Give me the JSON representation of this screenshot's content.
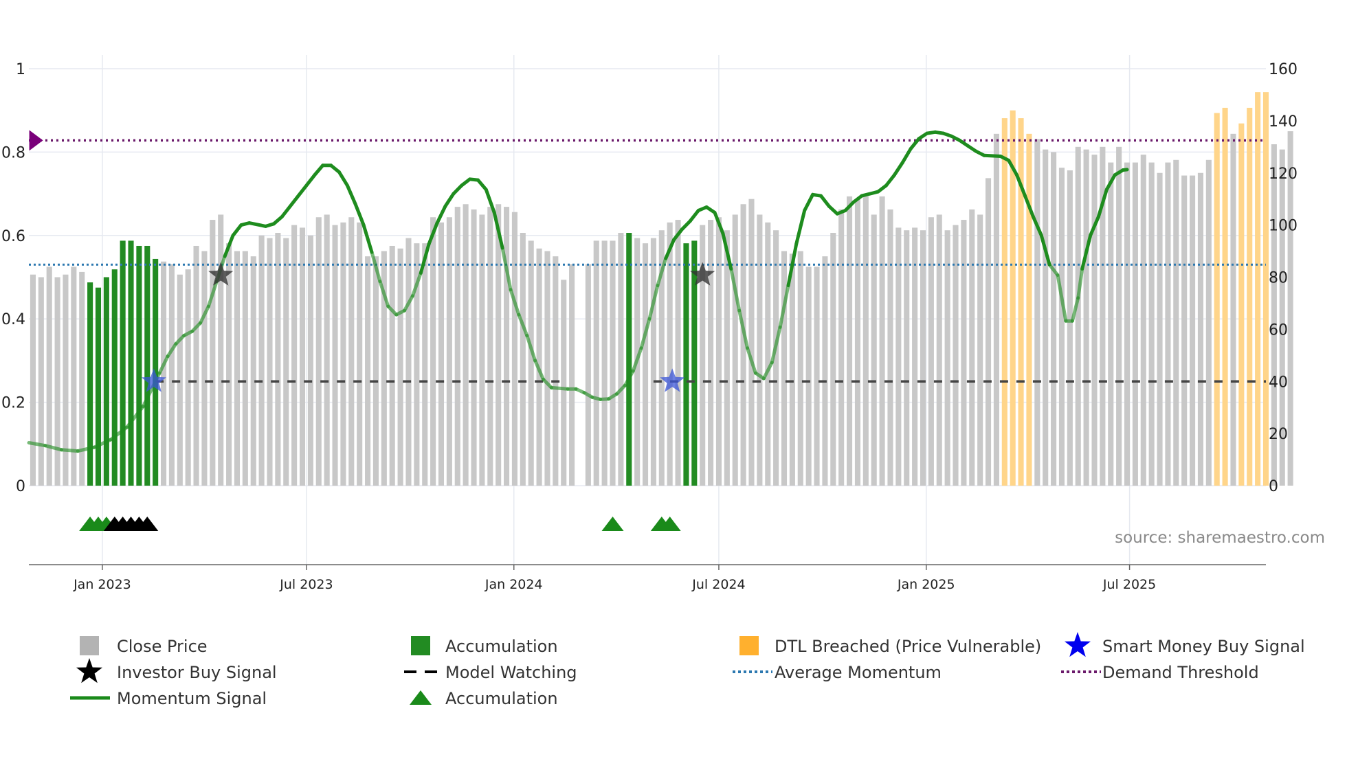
{
  "chart_data": {
    "type": "bar+line",
    "source": "source: sharemaestro.com",
    "left_axis": {
      "min": 0,
      "max": 1,
      "ticks": [
        0,
        0.2,
        0.4,
        0.6,
        0.8,
        1
      ],
      "tick_labels": [
        "0",
        "0.2",
        "0.4",
        "0.6",
        "0.8",
        "1"
      ]
    },
    "right_axis": {
      "min": 0,
      "max": 160,
      "ticks": [
        0,
        20,
        40,
        60,
        80,
        100,
        120,
        140,
        160
      ],
      "tick_labels": [
        "0",
        "20",
        "40",
        "60",
        "80",
        "100",
        "120",
        "140",
        "160"
      ]
    },
    "x_axis": {
      "start_week": 0,
      "end_week": 151.5,
      "ticks": [
        {
          "week": 9,
          "label": "Jan 2023"
        },
        {
          "week": 34,
          "label": "Jul 2023"
        },
        {
          "week": 59.4,
          "label": "Jan 2024"
        },
        {
          "week": 84.5,
          "label": "Jul 2024"
        },
        {
          "week": 109.9,
          "label": "Jan 2025"
        },
        {
          "week": 134.8,
          "label": "Jul 2025"
        }
      ]
    },
    "close_price": [
      81,
      80,
      84,
      80,
      81,
      84,
      82,
      78,
      76,
      80,
      83,
      94,
      94,
      92,
      92,
      87,
      86,
      85,
      81,
      83,
      92,
      90,
      102,
      104,
      93,
      90,
      90,
      88,
      96,
      95,
      97,
      95,
      100,
      99,
      96,
      103,
      104,
      100,
      101,
      103,
      101,
      88,
      88,
      90,
      92,
      91,
      95,
      93,
      93,
      103,
      101,
      103,
      107,
      108,
      106,
      104,
      107,
      108,
      107,
      105,
      97,
      94,
      91,
      90,
      88,
      79,
      85,
      0,
      85,
      94,
      94,
      94,
      97,
      97,
      95,
      93,
      95,
      98,
      101,
      102,
      93,
      94,
      100,
      102,
      103,
      98,
      104,
      108,
      110,
      104,
      101,
      98,
      90,
      89,
      90,
      84,
      84,
      88,
      97,
      106,
      111,
      110,
      111,
      104,
      111,
      106,
      99,
      98,
      99,
      98,
      103,
      104,
      98,
      100,
      102,
      106,
      104,
      118,
      135,
      141,
      144,
      141,
      135,
      133,
      129,
      128,
      122,
      121,
      130,
      129,
      127,
      130,
      124,
      130,
      124,
      124,
      127,
      124,
      120,
      124,
      125,
      119,
      119,
      120,
      125,
      143,
      145,
      135,
      139,
      145,
      151,
      151,
      131,
      129,
      136
    ],
    "bar_category": [
      "n",
      "n",
      "n",
      "n",
      "n",
      "n",
      "n",
      "a",
      "a",
      "a",
      "a",
      "a",
      "a",
      "a",
      "a",
      "a",
      "n",
      "n",
      "n",
      "n",
      "n",
      "n",
      "n",
      "n",
      "n",
      "n",
      "n",
      "n",
      "n",
      "n",
      "n",
      "n",
      "n",
      "n",
      "n",
      "n",
      "n",
      "n",
      "n",
      "n",
      "n",
      "n",
      "n",
      "n",
      "n",
      "n",
      "n",
      "n",
      "n",
      "n",
      "n",
      "n",
      "n",
      "n",
      "n",
      "n",
      "n",
      "n",
      "n",
      "n",
      "n",
      "n",
      "n",
      "n",
      "n",
      "n",
      "n",
      "n",
      "n",
      "n",
      "n",
      "n",
      "n",
      "a",
      "n",
      "n",
      "n",
      "n",
      "n",
      "n",
      "a",
      "a",
      "n",
      "n",
      "n",
      "n",
      "n",
      "n",
      "n",
      "n",
      "n",
      "n",
      "n",
      "n",
      "n",
      "n",
      "n",
      "n",
      "n",
      "n",
      "n",
      "n",
      "n",
      "n",
      "n",
      "n",
      "n",
      "n",
      "n",
      "n",
      "n",
      "n",
      "n",
      "n",
      "n",
      "n",
      "n",
      "n",
      "n",
      "d",
      "d",
      "d",
      "d",
      "n",
      "n",
      "n",
      "n",
      "n",
      "n",
      "n",
      "n",
      "n",
      "n",
      "n",
      "n",
      "n",
      "n",
      "n",
      "n",
      "n",
      "n",
      "n",
      "n",
      "n",
      "n",
      "d",
      "d",
      "n",
      "d",
      "d",
      "d",
      "d",
      "n",
      "n",
      "n"
    ],
    "momentum_signal": [
      [
        0,
        0.103
      ],
      [
        2,
        0.096
      ],
      [
        4,
        0.086
      ],
      [
        6,
        0.083
      ],
      [
        8,
        0.092
      ],
      [
        10,
        0.11
      ],
      [
        12,
        0.14
      ],
      [
        14,
        0.19
      ],
      [
        16,
        0.27
      ],
      [
        17,
        0.31
      ],
      [
        18,
        0.34
      ],
      [
        19,
        0.36
      ],
      [
        20,
        0.37
      ],
      [
        21,
        0.39
      ],
      [
        22,
        0.43
      ],
      [
        23,
        0.49
      ],
      [
        24,
        0.55
      ],
      [
        25,
        0.6
      ],
      [
        26,
        0.625
      ],
      [
        27,
        0.63
      ],
      [
        29,
        0.622
      ],
      [
        30,
        0.628
      ],
      [
        31,
        0.645
      ],
      [
        33,
        0.695
      ],
      [
        35,
        0.745
      ],
      [
        36,
        0.768
      ],
      [
        37,
        0.768
      ],
      [
        38,
        0.752
      ],
      [
        39,
        0.72
      ],
      [
        40,
        0.675
      ],
      [
        41,
        0.625
      ],
      [
        42,
        0.56
      ],
      [
        43,
        0.49
      ],
      [
        44,
        0.43
      ],
      [
        45,
        0.41
      ],
      [
        46,
        0.42
      ],
      [
        47,
        0.455
      ],
      [
        48,
        0.51
      ],
      [
        49,
        0.58
      ],
      [
        50,
        0.63
      ],
      [
        51,
        0.67
      ],
      [
        52,
        0.7
      ],
      [
        53,
        0.72
      ],
      [
        54,
        0.735
      ],
      [
        55,
        0.733
      ],
      [
        56,
        0.71
      ],
      [
        57,
        0.655
      ],
      [
        58,
        0.57
      ],
      [
        59,
        0.47
      ],
      [
        60,
        0.41
      ],
      [
        61,
        0.36
      ],
      [
        62,
        0.3
      ],
      [
        63,
        0.255
      ],
      [
        64,
        0.235
      ],
      [
        66,
        0.232
      ],
      [
        67,
        0.232
      ],
      [
        68,
        0.223
      ],
      [
        69,
        0.212
      ],
      [
        70,
        0.207
      ],
      [
        71,
        0.208
      ],
      [
        72,
        0.22
      ],
      [
        73,
        0.24
      ],
      [
        74,
        0.275
      ],
      [
        75,
        0.33
      ],
      [
        76,
        0.4
      ],
      [
        77,
        0.48
      ],
      [
        78,
        0.545
      ],
      [
        79,
        0.59
      ],
      [
        80,
        0.615
      ],
      [
        81,
        0.635
      ],
      [
        82,
        0.66
      ],
      [
        83,
        0.668
      ],
      [
        84,
        0.655
      ],
      [
        85,
        0.605
      ],
      [
        86,
        0.52
      ],
      [
        87,
        0.42
      ],
      [
        88,
        0.33
      ],
      [
        89,
        0.27
      ],
      [
        90,
        0.257
      ],
      [
        91,
        0.295
      ],
      [
        92,
        0.38
      ],
      [
        93,
        0.48
      ],
      [
        94,
        0.58
      ],
      [
        95,
        0.66
      ],
      [
        96,
        0.698
      ],
      [
        97,
        0.695
      ],
      [
        98,
        0.67
      ],
      [
        99,
        0.652
      ],
      [
        100,
        0.66
      ],
      [
        101,
        0.68
      ],
      [
        102,
        0.695
      ],
      [
        104,
        0.705
      ],
      [
        105,
        0.72
      ],
      [
        106,
        0.745
      ],
      [
        107,
        0.775
      ],
      [
        108,
        0.808
      ],
      [
        109,
        0.832
      ],
      [
        110,
        0.845
      ],
      [
        111,
        0.848
      ],
      [
        112,
        0.845
      ],
      [
        113,
        0.838
      ],
      [
        114,
        0.828
      ],
      [
        115,
        0.815
      ],
      [
        116,
        0.802
      ],
      [
        117,
        0.792
      ],
      [
        119,
        0.79
      ],
      [
        120,
        0.78
      ],
      [
        121,
        0.745
      ],
      [
        122,
        0.695
      ],
      [
        123,
        0.645
      ],
      [
        124,
        0.6
      ],
      [
        125,
        0.53
      ],
      [
        126,
        0.505
      ],
      [
        127,
        0.395
      ],
      [
        127.8,
        0.395
      ],
      [
        128.5,
        0.45
      ],
      [
        129,
        0.52
      ],
      [
        130,
        0.6
      ],
      [
        131,
        0.645
      ],
      [
        132,
        0.71
      ],
      [
        133,
        0.745
      ],
      [
        134,
        0.757
      ],
      [
        134.5,
        0.758
      ]
    ],
    "average_momentum": 0.53,
    "demand_threshold": 0.828,
    "model_watching": 0.25,
    "model_watching_segments": [
      [
        15.5,
        65
      ],
      [
        76.5,
        151.5
      ]
    ],
    "investor_buy_signals": [
      {
        "week": 23.5,
        "value": 0.505
      },
      {
        "week": 82.5,
        "value": 0.505
      }
    ],
    "smart_money_buy_signals": [
      {
        "week": 15.3,
        "value": 0.25
      },
      {
        "week": 78.8,
        "value": 0.25
      }
    ],
    "demand_marker": {
      "week": 0.3,
      "value": 0.828
    },
    "accumulation_markers": [
      {
        "week": 7,
        "color": "green"
      },
      {
        "week": 8,
        "color": "green"
      },
      {
        "week": 9,
        "color": "green"
      },
      {
        "week": 10,
        "color": "black"
      },
      {
        "week": 11,
        "color": "black"
      },
      {
        "week": 12,
        "color": "black"
      },
      {
        "week": 13,
        "color": "black"
      },
      {
        "week": 14,
        "color": "black"
      },
      {
        "week": 71,
        "color": "green"
      },
      {
        "week": 77,
        "color": "green"
      },
      {
        "week": 78,
        "color": "green"
      }
    ],
    "legend": [
      {
        "label": "Close Price",
        "symbol": "grey-square"
      },
      {
        "label": "Accumulation",
        "symbol": "green-square"
      },
      {
        "label": "DTL Breached (Price Vulnerable)",
        "symbol": "orange-square"
      },
      {
        "label": "Smart Money Buy Signal",
        "symbol": "blue-star"
      },
      {
        "label": "Investor Buy Signal",
        "symbol": "black-star"
      },
      {
        "label": "Model Watching",
        "symbol": "black-dash"
      },
      {
        "label": "Average Momentum",
        "symbol": "blue-dots"
      },
      {
        "label": "Demand Threshold",
        "symbol": "purple-dots"
      },
      {
        "label": "Momentum Signal",
        "symbol": "green-line"
      },
      {
        "label": "Accumulation",
        "symbol": "green-triangle"
      }
    ],
    "colors": {
      "close_price": "#c8c8c8",
      "accumulation": "#228b22",
      "dtl_breached": "#ffd58a",
      "momentum": "#1e8c1e",
      "average_momentum": "#2c78b0",
      "demand_threshold": "#6b1a6b",
      "model_watching": "#444444",
      "investor_star": "#333333",
      "smart_star": "#3b55d8",
      "grid": "#e6e9f0",
      "axis": "#666666"
    }
  }
}
